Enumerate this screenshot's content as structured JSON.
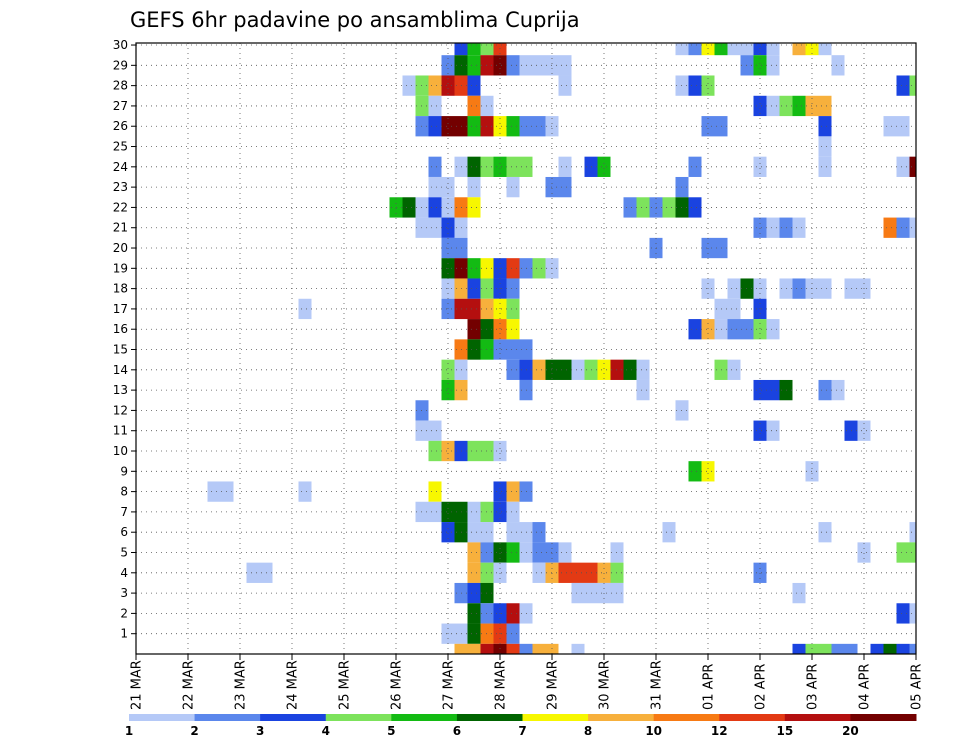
{
  "chart_data": {
    "type": "heatmap",
    "title": "GEFS 6hr padavine po ansamblima Cuprija",
    "xlabel": "",
    "ylabel": "",
    "x_tick_labels": [
      "21 MAR",
      "22 MAR",
      "23 MAR",
      "24 MAR",
      "25 MAR",
      "26 MAR",
      "27 MAR",
      "28 MAR",
      "29 MAR",
      "30 MAR",
      "31 MAR",
      "01 APR",
      "02 APR",
      "03 APR",
      "04 APR",
      "05 APR"
    ],
    "y_tick_labels": [
      "1",
      "2",
      "3",
      "4",
      "5",
      "6",
      "7",
      "8",
      "9",
      "10",
      "11",
      "12",
      "13",
      "14",
      "15",
      "16",
      "17",
      "18",
      "19",
      "20",
      "21",
      "22",
      "23",
      "24",
      "25",
      "26",
      "27",
      "28",
      "29",
      "30"
    ],
    "x_unit": "6-hour step from 21 MAR 00 UTC",
    "x_range": [
      0,
      60
    ],
    "y_range": [
      0,
      30
    ],
    "grid": true,
    "legend": {
      "placement": "bottom",
      "boundaries": [
        "1",
        "2",
        "3",
        "4",
        "5",
        "6",
        "7",
        "8",
        "10",
        "12",
        "15",
        "20"
      ],
      "colors": [
        "#b5c9f7",
        "#5b87ec",
        "#1a43e0",
        "#7de35c",
        "#13bb13",
        "#006400",
        "#f7f700",
        "#f7b03c",
        "#f77a14",
        "#e33a14",
        "#b40f0f",
        "#730000"
      ]
    },
    "cells": [
      [
        25,
        30,
        2
      ],
      [
        26,
        30,
        4
      ],
      [
        27,
        30,
        3
      ],
      [
        28,
        30,
        9
      ],
      [
        42,
        30,
        0
      ],
      [
        43,
        30,
        1
      ],
      [
        44,
        30,
        6
      ],
      [
        45,
        30,
        4
      ],
      [
        46,
        30,
        0
      ],
      [
        47,
        30,
        0
      ],
      [
        48,
        30,
        2
      ],
      [
        49,
        30,
        0
      ],
      [
        51,
        30,
        7
      ],
      [
        52,
        30,
        6
      ],
      [
        53,
        30,
        0
      ],
      [
        24,
        29,
        1
      ],
      [
        25,
        29,
        5
      ],
      [
        26,
        29,
        4
      ],
      [
        27,
        29,
        10
      ],
      [
        28,
        29,
        11
      ],
      [
        29,
        29,
        1
      ],
      [
        30,
        29,
        0
      ],
      [
        31,
        29,
        0
      ],
      [
        32,
        29,
        0
      ],
      [
        33,
        29,
        0
      ],
      [
        47,
        29,
        1
      ],
      [
        48,
        29,
        4
      ],
      [
        49,
        29,
        0
      ],
      [
        54,
        29,
        0
      ],
      [
        21,
        28,
        0
      ],
      [
        22,
        28,
        3
      ],
      [
        23,
        28,
        7
      ],
      [
        24,
        28,
        10
      ],
      [
        25,
        28,
        9
      ],
      [
        26,
        28,
        2
      ],
      [
        33,
        28,
        0
      ],
      [
        42,
        28,
        0
      ],
      [
        43,
        28,
        2
      ],
      [
        44,
        28,
        3
      ],
      [
        59,
        28,
        2
      ],
      [
        60,
        28,
        3
      ],
      [
        22,
        27,
        3
      ],
      [
        23,
        27,
        0
      ],
      [
        26,
        27,
        8
      ],
      [
        27,
        27,
        0
      ],
      [
        48,
        27,
        2
      ],
      [
        49,
        27,
        0
      ],
      [
        50,
        27,
        3
      ],
      [
        51,
        27,
        4
      ],
      [
        52,
        27,
        7
      ],
      [
        53,
        27,
        7
      ],
      [
        22,
        26,
        1
      ],
      [
        23,
        26,
        2
      ],
      [
        24,
        26,
        11
      ],
      [
        25,
        26,
        11
      ],
      [
        26,
        26,
        4
      ],
      [
        27,
        26,
        10
      ],
      [
        28,
        26,
        6
      ],
      [
        29,
        26,
        4
      ],
      [
        30,
        26,
        1
      ],
      [
        31,
        26,
        1
      ],
      [
        32,
        26,
        0
      ],
      [
        44,
        26,
        1
      ],
      [
        45,
        26,
        1
      ],
      [
        53,
        26,
        2
      ],
      [
        58,
        26,
        0
      ],
      [
        59,
        26,
        0
      ],
      [
        53,
        25,
        0
      ],
      [
        23,
        24,
        1
      ],
      [
        25,
        24,
        0
      ],
      [
        26,
        24,
        5
      ],
      [
        27,
        24,
        3
      ],
      [
        28,
        24,
        4
      ],
      [
        29,
        24,
        3
      ],
      [
        30,
        24,
        3
      ],
      [
        33,
        24,
        0
      ],
      [
        35,
        24,
        2
      ],
      [
        36,
        24,
        4
      ],
      [
        43,
        24,
        1
      ],
      [
        48,
        24,
        0
      ],
      [
        53,
        24,
        0
      ],
      [
        59,
        24,
        0
      ],
      [
        60,
        24,
        11
      ],
      [
        23,
        23,
        0
      ],
      [
        24,
        23,
        0
      ],
      [
        26,
        23,
        0
      ],
      [
        29,
        23,
        0
      ],
      [
        32,
        23,
        1
      ],
      [
        33,
        23,
        1
      ],
      [
        42,
        23,
        1
      ],
      [
        20,
        22,
        4
      ],
      [
        21,
        22,
        5
      ],
      [
        22,
        22,
        0
      ],
      [
        23,
        22,
        2
      ],
      [
        24,
        22,
        0
      ],
      [
        25,
        22,
        8
      ],
      [
        26,
        22,
        6
      ],
      [
        38,
        22,
        1
      ],
      [
        39,
        22,
        3
      ],
      [
        40,
        22,
        1
      ],
      [
        41,
        22,
        3
      ],
      [
        42,
        22,
        5
      ],
      [
        43,
        22,
        2
      ],
      [
        22,
        21,
        0
      ],
      [
        23,
        21,
        0
      ],
      [
        24,
        21,
        2
      ],
      [
        25,
        21,
        0
      ],
      [
        48,
        21,
        1
      ],
      [
        49,
        21,
        0
      ],
      [
        50,
        21,
        1
      ],
      [
        51,
        21,
        0
      ],
      [
        58,
        21,
        8
      ],
      [
        59,
        21,
        1
      ],
      [
        60,
        21,
        0
      ],
      [
        24,
        20,
        1
      ],
      [
        25,
        20,
        1
      ],
      [
        40,
        20,
        1
      ],
      [
        44,
        20,
        1
      ],
      [
        45,
        20,
        1
      ],
      [
        24,
        19,
        5
      ],
      [
        25,
        19,
        11
      ],
      [
        26,
        19,
        4
      ],
      [
        27,
        19,
        6
      ],
      [
        28,
        19,
        2
      ],
      [
        29,
        19,
        9
      ],
      [
        30,
        19,
        1
      ],
      [
        31,
        19,
        3
      ],
      [
        32,
        19,
        0
      ],
      [
        24,
        18,
        0
      ],
      [
        25,
        18,
        7
      ],
      [
        26,
        18,
        2
      ],
      [
        27,
        18,
        3
      ],
      [
        28,
        18,
        2
      ],
      [
        29,
        18,
        1
      ],
      [
        44,
        18,
        0
      ],
      [
        46,
        18,
        0
      ],
      [
        47,
        18,
        5
      ],
      [
        48,
        18,
        0
      ],
      [
        50,
        18,
        0
      ],
      [
        51,
        18,
        1
      ],
      [
        52,
        18,
        0
      ],
      [
        53,
        18,
        0
      ],
      [
        55,
        18,
        0
      ],
      [
        56,
        18,
        0
      ],
      [
        13,
        17,
        0
      ],
      [
        24,
        17,
        1
      ],
      [
        25,
        17,
        10
      ],
      [
        26,
        17,
        10
      ],
      [
        27,
        17,
        7
      ],
      [
        28,
        17,
        6
      ],
      [
        29,
        17,
        3
      ],
      [
        45,
        17,
        0
      ],
      [
        46,
        17,
        0
      ],
      [
        48,
        17,
        2
      ],
      [
        26,
        16,
        11
      ],
      [
        27,
        16,
        5
      ],
      [
        28,
        16,
        8
      ],
      [
        29,
        16,
        6
      ],
      [
        43,
        16,
        2
      ],
      [
        44,
        16,
        7
      ],
      [
        45,
        16,
        0
      ],
      [
        46,
        16,
        1
      ],
      [
        47,
        16,
        1
      ],
      [
        48,
        16,
        3
      ],
      [
        49,
        16,
        0
      ],
      [
        25,
        15,
        8
      ],
      [
        26,
        15,
        5
      ],
      [
        27,
        15,
        4
      ],
      [
        28,
        15,
        1
      ],
      [
        29,
        15,
        1
      ],
      [
        30,
        15,
        1
      ],
      [
        24,
        14,
        3
      ],
      [
        25,
        14,
        0
      ],
      [
        29,
        14,
        1
      ],
      [
        30,
        14,
        2
      ],
      [
        31,
        14,
        7
      ],
      [
        32,
        14,
        5
      ],
      [
        33,
        14,
        5
      ],
      [
        34,
        14,
        0
      ],
      [
        35,
        14,
        3
      ],
      [
        36,
        14,
        6
      ],
      [
        37,
        14,
        10
      ],
      [
        38,
        14,
        5
      ],
      [
        39,
        14,
        0
      ],
      [
        45,
        14,
        3
      ],
      [
        46,
        14,
        0
      ],
      [
        24,
        13,
        4
      ],
      [
        25,
        13,
        7
      ],
      [
        30,
        13,
        1
      ],
      [
        39,
        13,
        0
      ],
      [
        48,
        13,
        2
      ],
      [
        49,
        13,
        2
      ],
      [
        50,
        13,
        5
      ],
      [
        53,
        13,
        1
      ],
      [
        54,
        13,
        0
      ],
      [
        22,
        12,
        1
      ],
      [
        42,
        12,
        0
      ],
      [
        22,
        11,
        0
      ],
      [
        23,
        11,
        0
      ],
      [
        48,
        11,
        2
      ],
      [
        49,
        11,
        0
      ],
      [
        55,
        11,
        2
      ],
      [
        56,
        11,
        0
      ],
      [
        23,
        10,
        3
      ],
      [
        24,
        10,
        7
      ],
      [
        25,
        10,
        2
      ],
      [
        26,
        10,
        3
      ],
      [
        27,
        10,
        3
      ],
      [
        28,
        10,
        0
      ],
      [
        43,
        9,
        4
      ],
      [
        44,
        9,
        6
      ],
      [
        52,
        9,
        0
      ],
      [
        6,
        8,
        0
      ],
      [
        7,
        8,
        0
      ],
      [
        13,
        8,
        0
      ],
      [
        23,
        8,
        6
      ],
      [
        28,
        8,
        2
      ],
      [
        29,
        8,
        7
      ],
      [
        30,
        8,
        1
      ],
      [
        22,
        7,
        0
      ],
      [
        23,
        7,
        0
      ],
      [
        24,
        7,
        5
      ],
      [
        25,
        7,
        5
      ],
      [
        26,
        7,
        0
      ],
      [
        27,
        7,
        3
      ],
      [
        28,
        7,
        2
      ],
      [
        29,
        7,
        0
      ],
      [
        24,
        6,
        2
      ],
      [
        25,
        6,
        5
      ],
      [
        26,
        6,
        0
      ],
      [
        27,
        6,
        0
      ],
      [
        29,
        6,
        0
      ],
      [
        30,
        6,
        0
      ],
      [
        31,
        6,
        1
      ],
      [
        41,
        6,
        0
      ],
      [
        53,
        6,
        0
      ],
      [
        60,
        6,
        0
      ],
      [
        26,
        5,
        7
      ],
      [
        27,
        5,
        1
      ],
      [
        28,
        5,
        5
      ],
      [
        29,
        5,
        4
      ],
      [
        30,
        5,
        0
      ],
      [
        31,
        5,
        1
      ],
      [
        32,
        5,
        1
      ],
      [
        33,
        5,
        0
      ],
      [
        37,
        5,
        0
      ],
      [
        56,
        5,
        0
      ],
      [
        59,
        5,
        3
      ],
      [
        60,
        5,
        3
      ],
      [
        9,
        4,
        0
      ],
      [
        10,
        4,
        0
      ],
      [
        26,
        4,
        7
      ],
      [
        27,
        4,
        3
      ],
      [
        28,
        4,
        0
      ],
      [
        31,
        4,
        0
      ],
      [
        32,
        4,
        7
      ],
      [
        33,
        4,
        9
      ],
      [
        34,
        4,
        9
      ],
      [
        35,
        4,
        9
      ],
      [
        36,
        4,
        7
      ],
      [
        37,
        4,
        3
      ],
      [
        48,
        4,
        1
      ],
      [
        25,
        3,
        1
      ],
      [
        26,
        3,
        2
      ],
      [
        27,
        3,
        5
      ],
      [
        34,
        3,
        0
      ],
      [
        35,
        3,
        0
      ],
      [
        36,
        3,
        0
      ],
      [
        37,
        3,
        0
      ],
      [
        51,
        3,
        0
      ],
      [
        26,
        2,
        5
      ],
      [
        27,
        2,
        1
      ],
      [
        28,
        2,
        2
      ],
      [
        29,
        2,
        10
      ],
      [
        30,
        2,
        0
      ],
      [
        59,
        2,
        2
      ],
      [
        60,
        2,
        0
      ],
      [
        24,
        1,
        0
      ],
      [
        25,
        1,
        0
      ],
      [
        26,
        1,
        5
      ],
      [
        27,
        1,
        8
      ],
      [
        28,
        1,
        9
      ],
      [
        29,
        1,
        1
      ],
      [
        25,
        0,
        7
      ],
      [
        26,
        0,
        7
      ],
      [
        27,
        0,
        10
      ],
      [
        28,
        0,
        11
      ],
      [
        29,
        0,
        9
      ],
      [
        30,
        0,
        1
      ],
      [
        31,
        0,
        7
      ],
      [
        32,
        0,
        7
      ],
      [
        34,
        0,
        0
      ],
      [
        51,
        0,
        2
      ],
      [
        52,
        0,
        3
      ],
      [
        53,
        0,
        3
      ],
      [
        54,
        0,
        1
      ],
      [
        55,
        0,
        1
      ],
      [
        57,
        0,
        2
      ],
      [
        58,
        0,
        5
      ],
      [
        59,
        0,
        2
      ],
      [
        60,
        0,
        1
      ]
    ]
  }
}
